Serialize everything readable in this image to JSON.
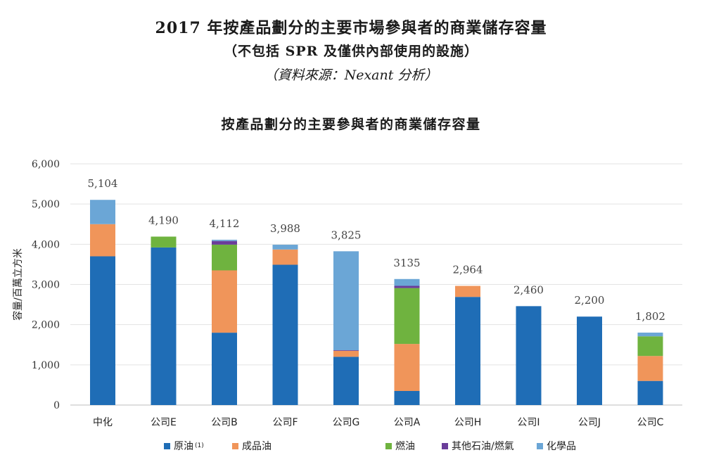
{
  "header": {
    "title": "2017 年按產品劃分的主要市場參與者的商業儲存容量",
    "subtitle": "（不包括 SPR 及僅供內部使用的設施）",
    "source": "（資料來源：Nexant 分析）"
  },
  "chart_data": {
    "type": "bar",
    "stacked": true,
    "title": "按產品劃分的主要參與者的商業儲存容量",
    "ylabel": "容量/百萬立方米",
    "ylim": [
      0,
      6000
    ],
    "yticks": [
      "0",
      "1,000",
      "2,000",
      "3,000",
      "4,000",
      "5,000",
      "6,000"
    ],
    "grid": true,
    "legend_position": "bottom",
    "categories": [
      "中化",
      "公司E",
      "公司B",
      "公司F",
      "公司G",
      "公司A",
      "公司H",
      "公司I",
      "公司J",
      "公司C"
    ],
    "totals": [
      "5,104",
      "4,190",
      "4,112",
      "3,988",
      "3,825",
      "3135",
      "2,964",
      "2,460",
      "2,200",
      "1,802"
    ],
    "series": [
      {
        "name": "原油",
        "note": "(1)",
        "color": "#1f6db6",
        "values": [
          3700,
          3920,
          1800,
          3490,
          1200,
          350,
          2690,
          2460,
          2200,
          600
        ]
      },
      {
        "name": "成品油",
        "color": "#f0955a",
        "values": [
          800,
          0,
          1550,
          380,
          150,
          1170,
          274,
          0,
          0,
          620
        ]
      },
      {
        "name": "燃油",
        "color": "#6fb33f",
        "values": [
          0,
          270,
          640,
          0,
          0,
          1390,
          0,
          0,
          0,
          490
        ]
      },
      {
        "name": "其他石油/燃氣",
        "color": "#6a3d9a",
        "values": [
          0,
          0,
          90,
          0,
          15,
          55,
          0,
          0,
          0,
          0
        ]
      },
      {
        "name": "化學品",
        "color": "#6ba6d6",
        "values": [
          604,
          0,
          32,
          118,
          2460,
          170,
          0,
          0,
          0,
          92
        ]
      }
    ]
  }
}
